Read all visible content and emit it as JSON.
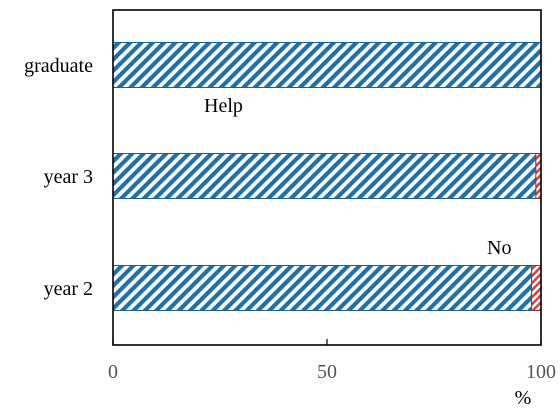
{
  "chart_data": {
    "type": "bar",
    "orientation": "horizontal",
    "stacked": true,
    "categories": [
      "graduate",
      "year 3",
      "year 2"
    ],
    "series": [
      {
        "name": "Help",
        "values": [
          100,
          98.8,
          97.8
        ],
        "color": "#1f6fa8",
        "pattern": "diagonal-hatch"
      },
      {
        "name": "No",
        "values": [
          0,
          1.2,
          2.2
        ],
        "color": "#d94040",
        "pattern": "diagonal-hatch"
      }
    ],
    "xlim": [
      0,
      100
    ],
    "xticks": [
      0,
      50,
      100
    ],
    "xtick_labels": [
      "0",
      "50",
      "100"
    ],
    "xlabel": "%",
    "grid": false,
    "legend": "inline labels"
  }
}
